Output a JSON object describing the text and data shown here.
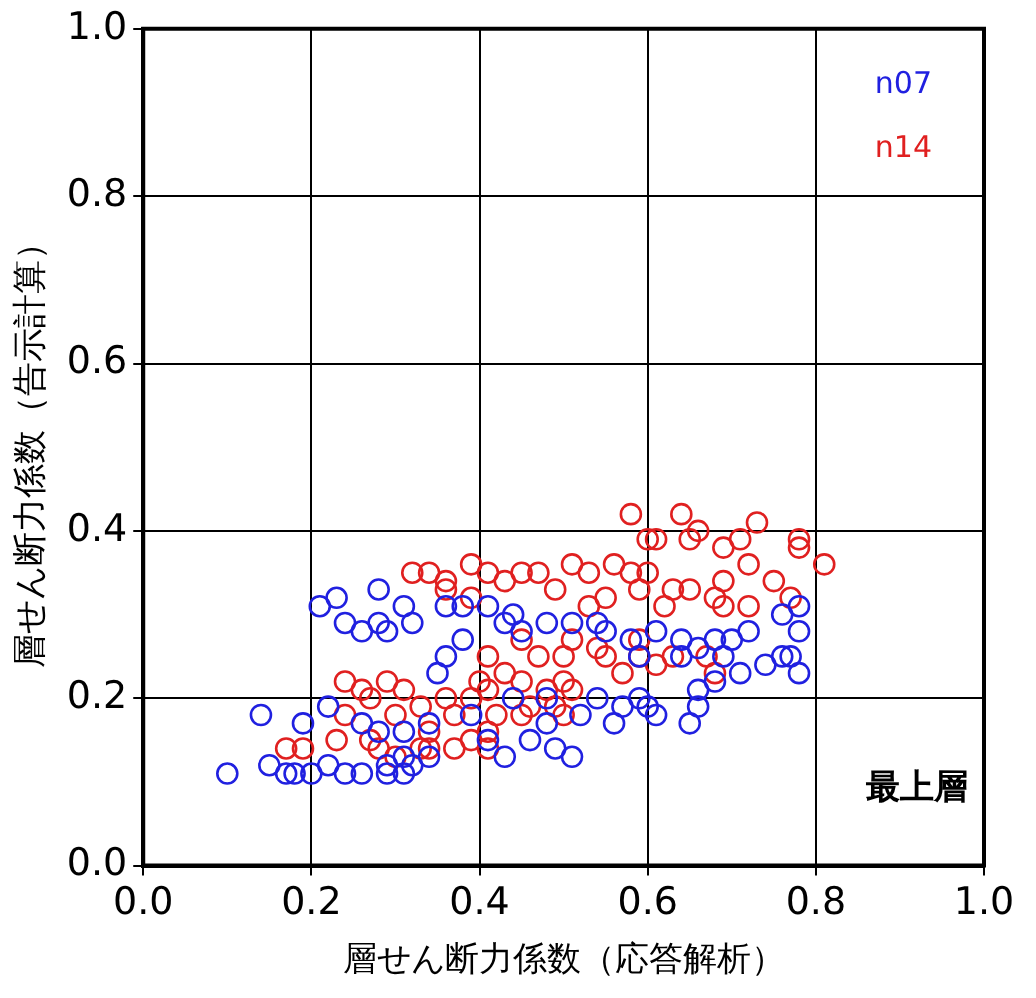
{
  "chart_data": {
    "type": "scatter",
    "xlabel": "層せん断力係数（応答解析）",
    "ylabel": "層せん断力係数（告示計算）",
    "xlim": [
      0,
      1
    ],
    "ylim": [
      0,
      1
    ],
    "xticks": [
      {
        "value": 0,
        "label": "0.0"
      },
      {
        "value": 0.2,
        "label": "0.2"
      },
      {
        "value": 0.4,
        "label": "0.4"
      },
      {
        "value": 0.6,
        "label": "0.6"
      },
      {
        "value": 0.8,
        "label": "0.8"
      },
      {
        "value": 1,
        "label": "1.0"
      }
    ],
    "yticks": [
      {
        "value": 0,
        "label": "0.0"
      },
      {
        "value": 0.2,
        "label": "0.2"
      },
      {
        "value": 0.4,
        "label": "0.4"
      },
      {
        "value": 0.6,
        "label": "0.6"
      },
      {
        "value": 0.8,
        "label": "0.8"
      },
      {
        "value": 1,
        "label": "1.0"
      }
    ],
    "grid": true,
    "legend": "top right",
    "marker": "circle",
    "annotations": [
      "最上層"
    ],
    "series": [
      {
        "name": "n07",
        "color": "#2020e0",
        "x": [
          0.1,
          0.14,
          0.15,
          0.18,
          0.2,
          0.19,
          0.21,
          0.23,
          0.24,
          0.26,
          0.28,
          0.28,
          0.29,
          0.32,
          0.31,
          0.22,
          0.22,
          0.24,
          0.26,
          0.29,
          0.31,
          0.32,
          0.26,
          0.28,
          0.31,
          0.34,
          0.35,
          0.38,
          0.36,
          0.39,
          0.41,
          0.43,
          0.46,
          0.49,
          0.51,
          0.48,
          0.52,
          0.54,
          0.56,
          0.57,
          0.6,
          0.61,
          0.65,
          0.66,
          0.66,
          0.38,
          0.36,
          0.41,
          0.44,
          0.43,
          0.48,
          0.51,
          0.54,
          0.55,
          0.58,
          0.59,
          0.61,
          0.64,
          0.66,
          0.68,
          0.7,
          0.72,
          0.71,
          0.74,
          0.76,
          0.76,
          0.78,
          0.78,
          0.78,
          0.77,
          0.64,
          0.45,
          0.31,
          0.29,
          0.34,
          0.17,
          0.44,
          0.48,
          0.59,
          0.68,
          0.69
        ],
        "values": [
          0.11,
          0.18,
          0.12,
          0.11,
          0.11,
          0.17,
          0.31,
          0.32,
          0.29,
          0.28,
          0.33,
          0.29,
          0.28,
          0.29,
          0.31,
          0.19,
          0.12,
          0.11,
          0.11,
          0.11,
          0.11,
          0.12,
          0.17,
          0.16,
          0.16,
          0.17,
          0.23,
          0.27,
          0.25,
          0.18,
          0.15,
          0.13,
          0.15,
          0.14,
          0.13,
          0.17,
          0.18,
          0.2,
          0.17,
          0.19,
          0.19,
          0.18,
          0.17,
          0.19,
          0.21,
          0.31,
          0.31,
          0.31,
          0.3,
          0.29,
          0.29,
          0.29,
          0.29,
          0.28,
          0.27,
          0.25,
          0.28,
          0.27,
          0.26,
          0.27,
          0.27,
          0.28,
          0.23,
          0.24,
          0.25,
          0.3,
          0.31,
          0.28,
          0.23,
          0.25,
          0.25,
          0.28,
          0.13,
          0.12,
          0.13,
          0.11,
          0.2,
          0.2,
          0.2,
          0.22,
          0.25
        ]
      },
      {
        "name": "n14",
        "color": "#e02020",
        "x": [
          0.17,
          0.19,
          0.24,
          0.23,
          0.26,
          0.27,
          0.29,
          0.31,
          0.3,
          0.27,
          0.28,
          0.3,
          0.33,
          0.34,
          0.37,
          0.39,
          0.41,
          0.33,
          0.36,
          0.37,
          0.39,
          0.4,
          0.41,
          0.42,
          0.45,
          0.46,
          0.49,
          0.5,
          0.51,
          0.5,
          0.45,
          0.41,
          0.43,
          0.45,
          0.47,
          0.5,
          0.51,
          0.54,
          0.55,
          0.57,
          0.59,
          0.61,
          0.63,
          0.59,
          0.68,
          0.67,
          0.32,
          0.34,
          0.36,
          0.39,
          0.41,
          0.43,
          0.45,
          0.47,
          0.49,
          0.51,
          0.53,
          0.56,
          0.58,
          0.59,
          0.6,
          0.58,
          0.6,
          0.61,
          0.64,
          0.65,
          0.66,
          0.69,
          0.71,
          0.73,
          0.78,
          0.78,
          0.81,
          0.77,
          0.75,
          0.72,
          0.69,
          0.68,
          0.65,
          0.63,
          0.62,
          0.69,
          0.72,
          0.55,
          0.53,
          0.39,
          0.36,
          0.24,
          0.34,
          0.48,
          0.41
        ],
        "values": [
          0.14,
          0.14,
          0.22,
          0.15,
          0.21,
          0.2,
          0.22,
          0.21,
          0.18,
          0.15,
          0.14,
          0.13,
          0.14,
          0.14,
          0.14,
          0.15,
          0.14,
          0.19,
          0.2,
          0.18,
          0.2,
          0.22,
          0.21,
          0.18,
          0.18,
          0.19,
          0.19,
          0.18,
          0.21,
          0.22,
          0.22,
          0.25,
          0.23,
          0.27,
          0.25,
          0.25,
          0.27,
          0.26,
          0.25,
          0.23,
          0.25,
          0.24,
          0.25,
          0.27,
          0.23,
          0.25,
          0.35,
          0.35,
          0.34,
          0.36,
          0.35,
          0.34,
          0.35,
          0.35,
          0.33,
          0.36,
          0.35,
          0.36,
          0.35,
          0.33,
          0.35,
          0.42,
          0.39,
          0.39,
          0.42,
          0.39,
          0.4,
          0.38,
          0.39,
          0.41,
          0.39,
          0.38,
          0.36,
          0.32,
          0.34,
          0.36,
          0.34,
          0.32,
          0.33,
          0.33,
          0.31,
          0.31,
          0.31,
          0.32,
          0.31,
          0.32,
          0.33,
          0.18,
          0.16,
          0.21,
          0.16
        ]
      }
    ]
  }
}
